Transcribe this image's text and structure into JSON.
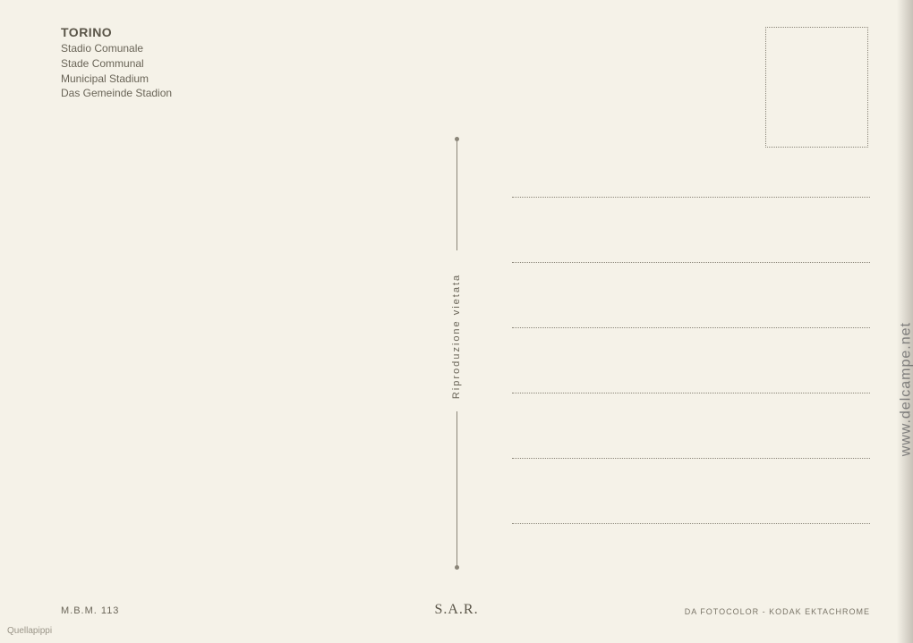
{
  "header": {
    "title": "TORINO",
    "subtitles": [
      "Stadio Comunale",
      "Stade Communal",
      "Municipal Stadium",
      "Das Gemeinde Stadion"
    ]
  },
  "divider_text": "Riproduzione vietata",
  "footer": {
    "left": "M.B.M. 113",
    "center": "S.A.R.",
    "right": "DA FOTOCOLOR - KODAK EKTACHROME"
  },
  "watermark": "www.delcampe.net",
  "seller": "Quellapippi",
  "address_line_count": 6,
  "colors": {
    "background": "#f5f2e8",
    "text_primary": "#5a5548",
    "text_secondary": "#6a6558",
    "dotted_border": "#8a8578"
  }
}
